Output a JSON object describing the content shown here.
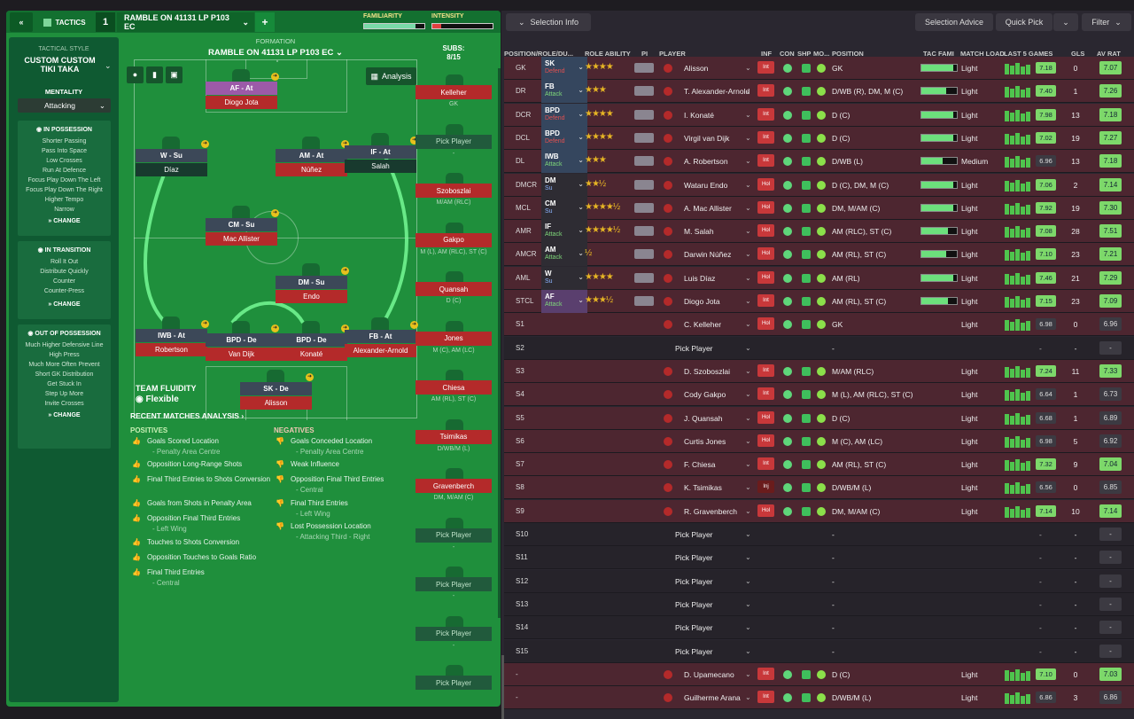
{
  "header": {
    "tactics_label": "TACTICS",
    "slot": "1",
    "tactic_name": "RAMBLE ON 41131 LP P103 EC",
    "add": "+",
    "familiarity_label": "FAMILIARITY",
    "intensity_label": "INTENSITY"
  },
  "sidebar": {
    "style_label": "TACTICAL STYLE",
    "style_name": "CUSTOM CUSTOM TIKI TAKA",
    "mentality_label": "MENTALITY",
    "mentality_value": "Attacking",
    "in_possession": {
      "title": "IN POSSESSION",
      "items": [
        "Shorter Passing",
        "Pass Into Space",
        "Low Crosses",
        "Run At Defence",
        "Focus Play Down The Left",
        "Focus Play Down The Right",
        "Higher Tempo",
        "Narrow"
      ],
      "change": "CHANGE"
    },
    "in_transition": {
      "title": "IN TRANSITION",
      "items": [
        "Roll It Out",
        "Distribute Quickly",
        "Counter",
        "Counter-Press"
      ],
      "change": "CHANGE"
    },
    "out_of_possession": {
      "title": "OUT OF POSSESSION",
      "items": [
        "Much Higher Defensive Line",
        "High Press",
        "Much More Often Prevent Short GK Distribution",
        "Get Stuck In",
        "Step Up More",
        "Invite Crosses"
      ],
      "change": "CHANGE"
    }
  },
  "formation": {
    "label": "FORMATION",
    "name": "RAMBLE ON 41131 LP P103 EC",
    "subs_label": "SUBS:",
    "subs_count": "8/15",
    "analysis": "Analysis"
  },
  "pitch_players": [
    {
      "role": "AF - At",
      "name": "Diogo Jota"
    },
    {
      "role": "W - Su",
      "name": "Díaz"
    },
    {
      "role": "AM - At",
      "name": "Núñez"
    },
    {
      "role": "IF - At",
      "name": "Salah"
    },
    {
      "role": "CM - Su",
      "name": "Mac Allister"
    },
    {
      "role": "DM - Su",
      "name": "Endo"
    },
    {
      "role": "IWB - At",
      "name": "Robertson"
    },
    {
      "role": "BPD - De",
      "name": "Van Dijk"
    },
    {
      "role": "BPD - De",
      "name": "Konaté"
    },
    {
      "role": "FB - At",
      "name": "Alexander-Arnold"
    },
    {
      "role": "SK - De",
      "name": "Alisson"
    }
  ],
  "fluidity": {
    "label": "TEAM FLUIDITY",
    "value": "Flexible"
  },
  "subs": [
    {
      "name": "Kelleher",
      "pos": "GK"
    },
    {
      "name": "Pick Player",
      "pos": "-"
    },
    {
      "name": "Szoboszlai",
      "pos": "M/AM (RLC)"
    },
    {
      "name": "Gakpo",
      "pos": "M (L), AM (RLC), ST (C)"
    },
    {
      "name": "Quansah",
      "pos": "D (C)"
    },
    {
      "name": "Jones",
      "pos": "M (C), AM (LC)"
    },
    {
      "name": "Chiesa",
      "pos": "AM (RL), ST (C)"
    },
    {
      "name": "Tsimikas",
      "pos": "D/WB/M (L)"
    },
    {
      "name": "Gravenberch",
      "pos": "DM, M/AM (C)"
    },
    {
      "name": "Pick Player",
      "pos": "-"
    },
    {
      "name": "Pick Player",
      "pos": "-"
    },
    {
      "name": "Pick Player",
      "pos": "-"
    },
    {
      "name": "Pick Player",
      "pos": ""
    }
  ],
  "analysis": {
    "title": "RECENT MATCHES ANALYSIS",
    "positives_label": "POSITIVES",
    "negatives_label": "NEGATIVES",
    "positives": [
      {
        "t": "Goals Scored Location",
        "s": "- Penalty Area Centre"
      },
      {
        "t": "Opposition Long-Range Shots",
        "s": ""
      },
      {
        "t": "Final Third Entries to Shots Conversion",
        "s": ""
      },
      {
        "t": "Goals from Shots in Penalty Area",
        "s": ""
      },
      {
        "t": "Opposition Final Third Entries",
        "s": "- Left Wing"
      },
      {
        "t": "Touches to Shots Conversion",
        "s": ""
      },
      {
        "t": "Opposition Touches to Goals Ratio",
        "s": ""
      },
      {
        "t": "Final Third Entries",
        "s": "- Central"
      }
    ],
    "negatives": [
      {
        "t": "Goals Conceded Location",
        "s": "- Penalty Area Centre"
      },
      {
        "t": "Weak Influence",
        "s": ""
      },
      {
        "t": "Opposition Final Third Entries",
        "s": "- Central"
      },
      {
        "t": "Final Third Entries",
        "s": "- Left Wing"
      },
      {
        "t": "Lost Possession Location",
        "s": "- Attacking Third - Right"
      }
    ]
  },
  "right": {
    "selection_info": "Selection Info",
    "selection_advice": "Selection Advice",
    "quick_pick": "Quick Pick",
    "filter": "Filter",
    "columns": [
      "POSITION/ROLE/DU...",
      "ROLE ABILITY",
      "PI",
      "PLAYER",
      "INF",
      "CON",
      "SHP",
      "MO...",
      "POSITION",
      "TAC FAMI",
      "MATCH LOAD",
      "LAST 5 GAMES",
      "GLS",
      "AV RAT"
    ],
    "rows": [
      {
        "pos": "GK",
        "role": "SK",
        "duty": "Defend",
        "stars": "★★★★",
        "name": "Alisson",
        "inf": "Int",
        "position": "GK",
        "fam": 0.9,
        "load": "Light",
        "rating": "7.18",
        "gls": "0",
        "avr": "7.07"
      },
      {
        "pos": "DR",
        "role": "FB",
        "duty": "Attack",
        "stars": "★★★",
        "name": "T. Alexander-Arnold",
        "inf": "Int",
        "position": "D/WB (R), DM, M (C)",
        "fam": 0.7,
        "load": "Light",
        "rating": "7.40",
        "gls": "1",
        "avr": "7.26"
      },
      {
        "pos": "DCR",
        "role": "BPD",
        "duty": "Defend",
        "stars": "★★★★",
        "name": "I. Konaté",
        "inf": "Int",
        "position": "D (C)",
        "fam": 0.9,
        "load": "Light",
        "rating": "7.98",
        "gls": "13",
        "avr": "7.18"
      },
      {
        "pos": "DCL",
        "role": "BPD",
        "duty": "Defend",
        "stars": "★★★★",
        "name": "Virgil van Dijk",
        "inf": "Int",
        "position": "D (C)",
        "fam": 0.9,
        "load": "Light",
        "rating": "7.02",
        "gls": "19",
        "avr": "7.27"
      },
      {
        "pos": "DL",
        "role": "IWB",
        "duty": "Attack",
        "stars": "★★★",
        "name": "A. Robertson",
        "inf": "Int",
        "position": "D/WB (L)",
        "fam": 0.6,
        "load": "Medium",
        "rating": "6.96",
        "gls": "13",
        "avr": "7.18"
      },
      {
        "pos": "DMCR",
        "role": "DM",
        "duty": "Su",
        "stars": "★★½",
        "name": "Wataru Endo",
        "inf": "Hol",
        "position": "D (C), DM, M (C)",
        "fam": 0.9,
        "load": "Light",
        "rating": "7.06",
        "gls": "2",
        "avr": "7.14"
      },
      {
        "pos": "MCL",
        "role": "CM",
        "duty": "Su",
        "stars": "★★★★½",
        "name": "A. Mac Allister",
        "inf": "Hol",
        "position": "DM, M/AM (C)",
        "fam": 0.9,
        "load": "Light",
        "rating": "7.92",
        "gls": "19",
        "avr": "7.30"
      },
      {
        "pos": "AMR",
        "role": "IF",
        "duty": "Attack",
        "stars": "★★★★½",
        "name": "M. Salah",
        "inf": "Hol",
        "position": "AM (RLC), ST (C)",
        "fam": 0.75,
        "load": "Light",
        "rating": "7.08",
        "gls": "28",
        "avr": "7.51"
      },
      {
        "pos": "AMCR",
        "role": "AM",
        "duty": "Attack",
        "stars": "½",
        "name": "Darwin Núñez",
        "inf": "Hol",
        "position": "AM (RL), ST (C)",
        "fam": 0.7,
        "load": "Light",
        "rating": "7.10",
        "gls": "23",
        "avr": "7.21"
      },
      {
        "pos": "AML",
        "role": "W",
        "duty": "Su",
        "stars": "★★★★",
        "name": "Luis Díaz",
        "inf": "Hol",
        "position": "AM (RL)",
        "fam": 0.9,
        "load": "Light",
        "rating": "7.46",
        "gls": "21",
        "avr": "7.29"
      },
      {
        "pos": "STCL",
        "role": "AF",
        "duty": "Attack",
        "stars": "★★★½",
        "name": "Diogo Jota",
        "inf": "Int",
        "position": "AM (RL), ST (C)",
        "fam": 0.75,
        "load": "Light",
        "rating": "7.15",
        "gls": "23",
        "avr": "7.09"
      },
      {
        "pos": "S1",
        "role": "",
        "duty": "",
        "stars": "",
        "name": "C. Kelleher",
        "inf": "Hol",
        "position": "GK",
        "fam": 0,
        "load": "Light",
        "rating": "6.98",
        "gls": "0",
        "avr": "6.96"
      },
      {
        "pos": "S2",
        "role": "",
        "duty": "",
        "stars": "",
        "name": "Pick Player",
        "inf": "",
        "position": "-",
        "fam": 0,
        "load": "",
        "rating": "",
        "gls": "-",
        "avr": "-"
      },
      {
        "pos": "S3",
        "role": "",
        "duty": "",
        "stars": "",
        "name": "D. Szoboszlai",
        "inf": "Int",
        "position": "M/AM (RLC)",
        "fam": 0,
        "load": "Light",
        "rating": "7.24",
        "gls": "11",
        "avr": "7.33"
      },
      {
        "pos": "S4",
        "role": "",
        "duty": "",
        "stars": "",
        "name": "Cody Gakpo",
        "inf": "Int",
        "position": "M (L), AM (RLC), ST (C)",
        "fam": 0,
        "load": "Light",
        "rating": "6.64",
        "gls": "1",
        "avr": "6.73"
      },
      {
        "pos": "S5",
        "role": "",
        "duty": "",
        "stars": "",
        "name": "J. Quansah",
        "inf": "Hol",
        "position": "D (C)",
        "fam": 0,
        "load": "Light",
        "rating": "6.68",
        "gls": "1",
        "avr": "6.89"
      },
      {
        "pos": "S6",
        "role": "",
        "duty": "",
        "stars": "",
        "name": "Curtis Jones",
        "inf": "Hol",
        "position": "M (C), AM (LC)",
        "fam": 0,
        "load": "Light",
        "rating": "6.98",
        "gls": "5",
        "avr": "6.92"
      },
      {
        "pos": "S7",
        "role": "",
        "duty": "",
        "stars": "",
        "name": "F. Chiesa",
        "inf": "Int",
        "position": "AM (RL), ST (C)",
        "fam": 0,
        "load": "Light",
        "rating": "7.32",
        "gls": "9",
        "avr": "7.04"
      },
      {
        "pos": "S8",
        "role": "",
        "duty": "",
        "stars": "",
        "name": "K. Tsimikas",
        "inf": "Inj",
        "position": "D/WB/M (L)",
        "fam": 0,
        "load": "Light",
        "rating": "6.56",
        "gls": "0",
        "avr": "6.85"
      },
      {
        "pos": "S9",
        "role": "",
        "duty": "",
        "stars": "",
        "name": "R. Gravenberch",
        "inf": "Hol",
        "position": "DM, M/AM (C)",
        "fam": 0,
        "load": "Light",
        "rating": "7.14",
        "gls": "10",
        "avr": "7.14"
      },
      {
        "pos": "S10",
        "role": "",
        "duty": "",
        "stars": "",
        "name": "Pick Player",
        "inf": "",
        "position": "-",
        "fam": 0,
        "load": "",
        "rating": "",
        "gls": "-",
        "avr": "-"
      },
      {
        "pos": "S11",
        "role": "",
        "duty": "",
        "stars": "",
        "name": "Pick Player",
        "inf": "",
        "position": "-",
        "fam": 0,
        "load": "",
        "rating": "",
        "gls": "-",
        "avr": "-"
      },
      {
        "pos": "S12",
        "role": "",
        "duty": "",
        "stars": "",
        "name": "Pick Player",
        "inf": "",
        "position": "-",
        "fam": 0,
        "load": "",
        "rating": "",
        "gls": "-",
        "avr": "-"
      },
      {
        "pos": "S13",
        "role": "",
        "duty": "",
        "stars": "",
        "name": "Pick Player",
        "inf": "",
        "position": "-",
        "fam": 0,
        "load": "",
        "rating": "",
        "gls": "-",
        "avr": "-"
      },
      {
        "pos": "S14",
        "role": "",
        "duty": "",
        "stars": "",
        "name": "Pick Player",
        "inf": "",
        "position": "-",
        "fam": 0,
        "load": "",
        "rating": "",
        "gls": "-",
        "avr": "-"
      },
      {
        "pos": "S15",
        "role": "",
        "duty": "",
        "stars": "",
        "name": "Pick Player",
        "inf": "",
        "position": "-",
        "fam": 0,
        "load": "",
        "rating": "",
        "gls": "-",
        "avr": "-"
      },
      {
        "pos": "-",
        "role": "",
        "duty": "",
        "stars": "",
        "name": "D. Upamecano",
        "inf": "Int",
        "position": "D (C)",
        "fam": 0,
        "load": "Light",
        "rating": "7.10",
        "gls": "0",
        "avr": "7.03"
      },
      {
        "pos": "-",
        "role": "",
        "duty": "",
        "stars": "",
        "name": "Guilherme Arana",
        "inf": "Int",
        "position": "D/WB/M (L)",
        "fam": 0,
        "load": "Light",
        "rating": "6.86",
        "gls": "3",
        "avr": "6.86"
      }
    ]
  },
  "colors": {
    "pitch": "#1f8f3c",
    "accent_green": "#7dd86a",
    "red_row": "#4d2630",
    "player_red": "#b42a2a"
  },
  "familiarity_level": 0.85,
  "intensity_level": 0.15
}
